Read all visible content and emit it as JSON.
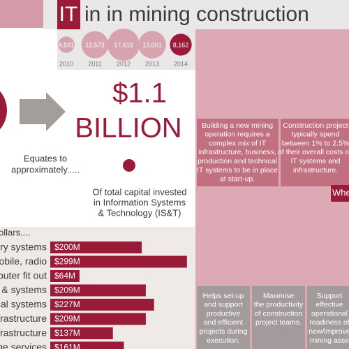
{
  "title": {
    "highlight": "IT",
    "text": "in in mining construction"
  },
  "projects": {
    "values": [
      4591,
      12573,
      17615,
      13001,
      8162
    ],
    "value_labels": [
      "4,591",
      "12,573",
      "17,615",
      "13,001",
      "8,162"
    ],
    "years": [
      "2010",
      "2011",
      "2012",
      "2013",
      "2014"
    ]
  },
  "equates": [
    "Equates to",
    "approximately....."
  ],
  "big_amount": {
    "line1": "$1.1",
    "line2": "BILLION"
  },
  "capital_note": [
    "Of total capital invested",
    "in Information Systems",
    "& Technology (IS&T)"
  ],
  "bars": {
    "heading": "ollars....",
    "labels": [
      "ery systems",
      "obile, radio",
      "puter fit out",
      "& systems",
      "cal systems",
      "frastructure",
      "frastructure",
      "ge services"
    ],
    "values": [
      200,
      299,
      64,
      209,
      227,
      209,
      137,
      161
    ],
    "value_labels": [
      "$200M",
      "$299M",
      "$64M",
      "$209M",
      "$227M",
      "$209M",
      "$137M",
      "$161M"
    ]
  },
  "info_boxes": [
    [
      "Building a new mining",
      "operation requires a",
      "complex mix of IT",
      "infrastructure, business,",
      "production and technical",
      "IT systems to be in place",
      "at start-up."
    ],
    [
      "Construction project",
      "typically spend",
      "between 1% to 2.5%",
      "of their overall costs on",
      "IT systems and",
      "infrastructure."
    ]
  ],
  "where_label": "Whe",
  "benefits": [
    [
      "Helps set-up",
      "and support",
      "productive",
      "and efficient",
      "projects during",
      "execution."
    ],
    [
      "Maximise",
      "the productivity",
      "of construction",
      "project teams."
    ],
    [
      "Support",
      "effective",
      "operational",
      "readiness of",
      "new/improve",
      "mining asse"
    ]
  ]
}
